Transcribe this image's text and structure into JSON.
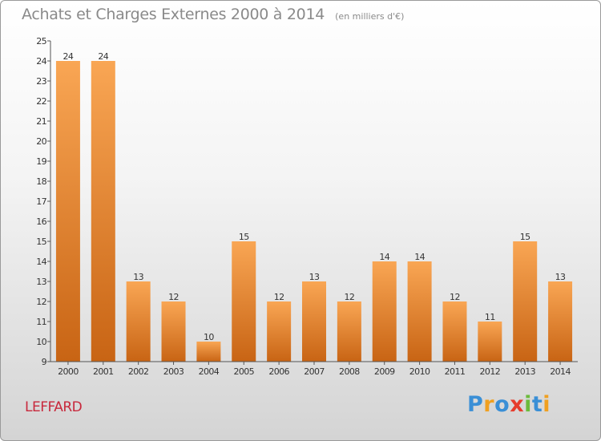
{
  "header": {
    "title": "Achats et Charges Externes 2000 à 2014",
    "subtitle": "(en milliers d'€)"
  },
  "commune": "LEFFARD",
  "logo": {
    "letters": [
      "P",
      "r",
      "o",
      "x",
      "i",
      "t",
      "i"
    ],
    "colors": [
      "#3a8fd6",
      "#f0a020",
      "#3a8fd6",
      "#e63c2c",
      "#6cbb3c",
      "#3a8fd6",
      "#f0a020"
    ]
  },
  "chart_data": {
    "type": "bar",
    "title": "Achats et Charges Externes 2000 à 2014",
    "subtitle": "(en milliers d'€)",
    "categories": [
      "2000",
      "2001",
      "2002",
      "2003",
      "2004",
      "2005",
      "2006",
      "2007",
      "2008",
      "2009",
      "2010",
      "2011",
      "2012",
      "2013",
      "2014"
    ],
    "values": [
      24,
      24,
      13,
      12,
      10,
      15,
      12,
      13,
      12,
      14,
      14,
      12,
      11,
      15,
      13
    ],
    "data_labels": [
      "24",
      "24",
      "13",
      "12",
      "10",
      "15",
      "12",
      "13",
      "12",
      "14",
      "14",
      "12",
      "11",
      "15",
      "13"
    ],
    "ylim": [
      9,
      25
    ],
    "yticks": [
      "9",
      "10",
      "11",
      "12",
      "13",
      "14",
      "15",
      "16",
      "17",
      "18",
      "19",
      "20",
      "21",
      "22",
      "23",
      "24",
      "25"
    ],
    "xlabel": "",
    "ylabel": "",
    "grid": false,
    "bar_color": "#f08c28"
  }
}
